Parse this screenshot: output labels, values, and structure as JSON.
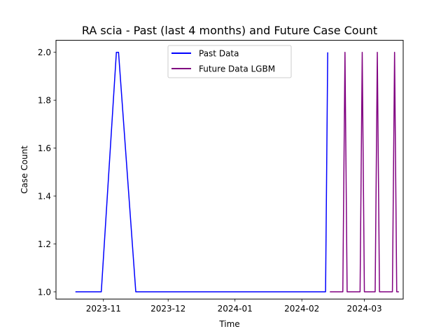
{
  "chart_data": {
    "type": "line",
    "title": "RA scia - Past (last 4 months) and Future Case Count",
    "xlabel": "Time",
    "ylabel": "Case Count",
    "x_axis_type": "date",
    "xlim": [
      "2023-10-10",
      "2024-03-19"
    ],
    "ylim": [
      0.97,
      2.05
    ],
    "x_ticks": [
      "2023-11-01",
      "2023-12-01",
      "2024-01-01",
      "2024-02-01",
      "2024-03-01"
    ],
    "x_tick_labels": [
      "2023-11",
      "2023-12",
      "2024-01",
      "2024-02",
      "2024-03"
    ],
    "y_ticks": [
      1.0,
      1.2,
      1.4,
      1.6,
      1.8,
      2.0
    ],
    "y_tick_labels": [
      "1.0",
      "1.2",
      "1.4",
      "1.6",
      "1.8",
      "2.0"
    ],
    "grid": false,
    "legend_position": "top-center",
    "series": [
      {
        "name": "Past Data",
        "color": "#0000ff",
        "points": [
          [
            "2023-10-19",
            1
          ],
          [
            "2023-10-31",
            1
          ],
          [
            "2023-11-07",
            2
          ],
          [
            "2023-11-08",
            2
          ],
          [
            "2023-11-16",
            1
          ],
          [
            "2024-02-12",
            1
          ],
          [
            "2024-02-13",
            2
          ]
        ]
      },
      {
        "name": "Future Data LGBM",
        "color": "#800080",
        "points": [
          [
            "2024-02-14",
            1
          ],
          [
            "2024-02-20",
            1
          ],
          [
            "2024-02-21",
            2
          ],
          [
            "2024-02-22",
            1
          ],
          [
            "2024-02-28",
            1
          ],
          [
            "2024-02-29",
            2
          ],
          [
            "2024-03-01",
            1
          ],
          [
            "2024-03-06",
            1
          ],
          [
            "2024-03-07",
            2
          ],
          [
            "2024-03-08",
            1
          ],
          [
            "2024-03-14",
            1
          ],
          [
            "2024-03-15",
            2
          ],
          [
            "2024-03-16",
            1
          ],
          [
            "2024-03-17",
            1
          ]
        ]
      }
    ]
  }
}
